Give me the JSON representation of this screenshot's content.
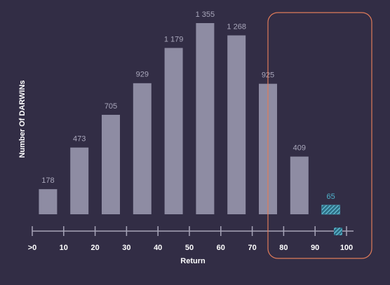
{
  "chart_data": {
    "type": "histogram",
    "x_label": "Return",
    "y_label": "Number Of DARWINs",
    "bins": [
      {
        "value": 0,
        "label": ">0"
      },
      10,
      20,
      30,
      40,
      50,
      60,
      70,
      80,
      90,
      100
    ],
    "values": [
      178,
      473,
      705,
      929,
      1179,
      1355,
      1268,
      925,
      409,
      65
    ],
    "value_labels": [
      "178",
      "473",
      "705",
      "929",
      "1 179",
      "1 355",
      "1 268",
      "925",
      "409",
      "65"
    ],
    "color": "#8e8ca3",
    "hatched_bins": [
      9
    ],
    "hatch_color": "#4fb3cc",
    "xlim": [
      0,
      100
    ],
    "xticks": [
      {
        "value": 0,
        "label": ">0"
      },
      10,
      20,
      30,
      40,
      50,
      60,
      70,
      80,
      90,
      100
    ]
  }
}
